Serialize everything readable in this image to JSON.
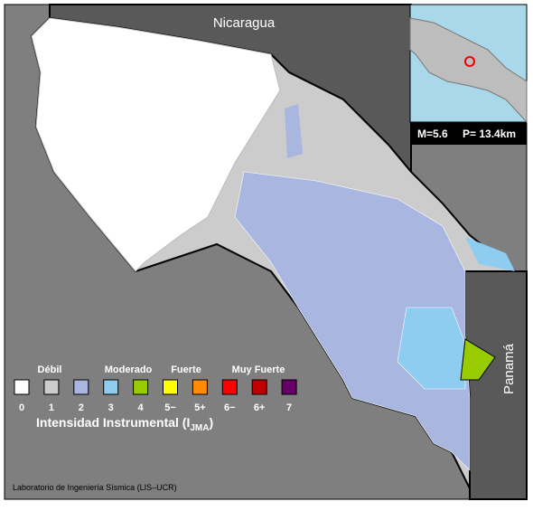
{
  "map": {
    "labels": {
      "north": "Nicaragua",
      "east": "Panamá"
    },
    "inset": {
      "magnitude": "M=5.6",
      "depth": "P= 13.4km"
    },
    "legend": {
      "groups": [
        "Débil",
        "Moderado",
        "Fuerte",
        "Muy Fuerte"
      ],
      "items": [
        {
          "label": "0",
          "color": "#ffffff"
        },
        {
          "label": "1",
          "color": "#cccccc"
        },
        {
          "label": "2",
          "color": "#a8b6e0"
        },
        {
          "label": "3",
          "color": "#8fcdf0"
        },
        {
          "label": "4",
          "color": "#99cc00"
        },
        {
          "label": "5−",
          "color": "#ffff00"
        },
        {
          "label": "5+",
          "color": "#ff8c00"
        },
        {
          "label": "6−",
          "color": "#ff0000"
        },
        {
          "label": "6+",
          "color": "#c00000"
        },
        {
          "label": "7",
          "color": "#660066"
        }
      ],
      "title": "Intensidad Instrumental (I",
      "title_sub": "JMA",
      "title_end": ")"
    },
    "credit": "Laboratorio de Ingeniería Sísmica (LIS–UCR)"
  }
}
